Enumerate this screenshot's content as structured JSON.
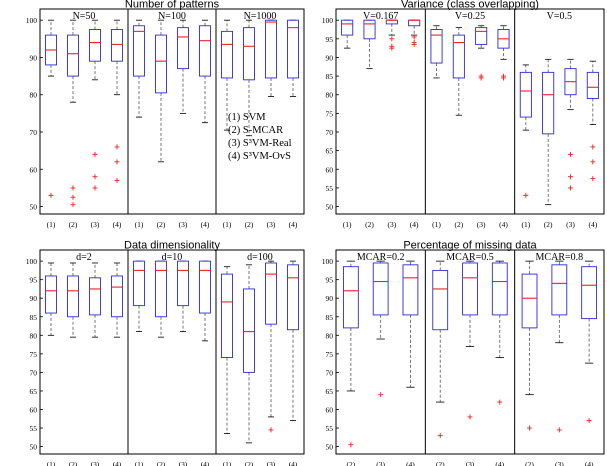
{
  "chart_data": [
    {
      "type": "box",
      "title": "Number of patterns",
      "ylim": [
        48,
        103
      ],
      "yticks": [
        50,
        60,
        70,
        80,
        90,
        100
      ],
      "categories": [
        "(1)",
        "(2)",
        "(3)",
        "(4)"
      ],
      "legend": [
        "(1) SVM",
        "(2) S-MCAR",
        "(3) S³VM-Real",
        "(4) S³VM-OvS"
      ],
      "groups": [
        {
          "label": "N=50",
          "boxes": [
            {
              "category": "(1)",
              "whisker_low": 85,
              "q1": 88,
              "median": 92,
              "q3": 96,
              "whisker_high": 100,
              "outliers": [
                53
              ]
            },
            {
              "category": "(2)",
              "whisker_low": 78,
              "q1": 85,
              "median": 91,
              "q3": 96,
              "whisker_high": 100,
              "outliers": [
                55,
                52.5,
                50.5
              ]
            },
            {
              "category": "(3)",
              "whisker_low": 84,
              "q1": 89,
              "median": 94,
              "q3": 97.5,
              "whisker_high": 100,
              "outliers": [
                64,
                58,
                55
              ]
            },
            {
              "category": "(4)",
              "whisker_low": 80,
              "q1": 89,
              "median": 93.5,
              "q3": 97.5,
              "whisker_high": 100,
              "outliers": [
                66,
                62,
                57
              ]
            }
          ]
        },
        {
          "label": "N=100",
          "boxes": [
            {
              "category": "(1)",
              "whisker_low": 74,
              "q1": 85,
              "median": 97,
              "q3": 98.5,
              "whisker_high": 100,
              "outliers": []
            },
            {
              "category": "(2)",
              "whisker_low": 62,
              "q1": 80.5,
              "median": 89,
              "q3": 96,
              "whisker_high": 100,
              "outliers": []
            },
            {
              "category": "(3)",
              "whisker_low": 75,
              "q1": 87,
              "median": 95.5,
              "q3": 98,
              "whisker_high": 100,
              "outliers": []
            },
            {
              "category": "(4)",
              "whisker_low": 72.5,
              "q1": 85,
              "median": 94.5,
              "q3": 98.5,
              "whisker_high": 100,
              "outliers": []
            }
          ]
        },
        {
          "label": "N=1000",
          "boxes": [
            {
              "category": "(1)",
              "whisker_low": 70.5,
              "q1": 84.5,
              "median": 93.5,
              "q3": 97,
              "whisker_high": 100,
              "outliers": []
            },
            {
              "category": "(2)",
              "whisker_low": 69,
              "q1": 84,
              "median": 93,
              "q3": 98,
              "whisker_high": 100,
              "outliers": []
            },
            {
              "category": "(3)",
              "whisker_low": 79.5,
              "q1": 84.5,
              "median": 99.5,
              "q3": 100,
              "whisker_high": 100,
              "outliers": []
            },
            {
              "category": "(4)",
              "whisker_low": 79.5,
              "q1": 84.5,
              "median": 98,
              "q3": 100,
              "whisker_high": 100,
              "outliers": []
            }
          ]
        }
      ]
    },
    {
      "type": "box",
      "title": "Variance (class overlapping)",
      "ylim": [
        48,
        103
      ],
      "yticks": [
        50,
        55,
        60,
        65,
        70,
        75,
        80,
        85,
        90,
        95,
        100
      ],
      "categories": [
        "(1)",
        "(2)",
        "(3)",
        "(4)"
      ],
      "groups": [
        {
          "label": "V=0.167",
          "boxes": [
            {
              "category": "(1)",
              "whisker_low": 92.5,
              "q1": 96,
              "median": 99,
              "q3": 100,
              "whisker_high": 100,
              "outliers": []
            },
            {
              "category": "(2)",
              "whisker_low": 87,
              "q1": 95,
              "median": 99,
              "q3": 100,
              "whisker_high": 100,
              "outliers": []
            },
            {
              "category": "(3)",
              "whisker_low": 96,
              "q1": 99,
              "median": 100,
              "q3": 100,
              "whisker_high": 100,
              "outliers": [
                95,
                93,
                92.5
              ]
            },
            {
              "category": "(4)",
              "whisker_low": 96,
              "q1": 98.5,
              "median": 100,
              "q3": 100,
              "whisker_high": 100,
              "outliers": [
                95.5,
                94,
                93.5
              ]
            }
          ]
        },
        {
          "label": "V=0.25",
          "boxes": [
            {
              "category": "(1)",
              "whisker_low": 84.5,
              "q1": 88.5,
              "median": 96,
              "q3": 97.5,
              "whisker_high": 98.5,
              "outliers": []
            },
            {
              "category": "(2)",
              "whisker_low": 74.5,
              "q1": 84.5,
              "median": 94,
              "q3": 96,
              "whisker_high": 98,
              "outliers": []
            },
            {
              "category": "(3)",
              "whisker_low": 92.5,
              "q1": 93.5,
              "median": 97,
              "q3": 98,
              "whisker_high": 98.5,
              "outliers": [
                85,
                84.5
              ]
            },
            {
              "category": "(4)",
              "whisker_low": 89.5,
              "q1": 92.5,
              "median": 95,
              "q3": 97.5,
              "whisker_high": 98.5,
              "outliers": [
                85,
                84.5
              ]
            }
          ]
        },
        {
          "label": "V=0.5",
          "boxes": [
            {
              "category": "(1)",
              "whisker_low": 70.5,
              "q1": 74,
              "median": 81,
              "q3": 86,
              "whisker_high": 88,
              "outliers": [
                53
              ]
            },
            {
              "category": "(2)",
              "whisker_low": 50.5,
              "q1": 69.5,
              "median": 80,
              "q3": 86,
              "whisker_high": 89.5,
              "outliers": []
            },
            {
              "category": "(3)",
              "whisker_low": 76,
              "q1": 80,
              "median": 83.5,
              "q3": 87,
              "whisker_high": 89.5,
              "outliers": [
                64,
                58,
                55
              ]
            },
            {
              "category": "(4)",
              "whisker_low": 72,
              "q1": 79,
              "median": 82,
              "q3": 86,
              "whisker_high": 89,
              "outliers": [
                66,
                62,
                57.5
              ]
            }
          ]
        }
      ]
    },
    {
      "type": "box",
      "title": "Data dimensionality",
      "ylim": [
        48,
        103
      ],
      "yticks": [
        50,
        55,
        60,
        65,
        70,
        75,
        80,
        85,
        90,
        95,
        100
      ],
      "categories": [
        "(1)",
        "(2)",
        "(3)",
        "(4)"
      ],
      "groups": [
        {
          "label": "d=2",
          "boxes": [
            {
              "category": "(1)",
              "whisker_low": 80,
              "q1": 86,
              "median": 92,
              "q3": 96,
              "whisker_high": 99.5,
              "outliers": []
            },
            {
              "category": "(2)",
              "whisker_low": 79.5,
              "q1": 85,
              "median": 92,
              "q3": 96,
              "whisker_high": 99.5,
              "outliers": []
            },
            {
              "category": "(3)",
              "whisker_low": 79.5,
              "q1": 85.5,
              "median": 92.5,
              "q3": 95.5,
              "whisker_high": 99.5,
              "outliers": []
            },
            {
              "category": "(4)",
              "whisker_low": 79.5,
              "q1": 85,
              "median": 93,
              "q3": 96,
              "whisker_high": 99.5,
              "outliers": []
            }
          ]
        },
        {
          "label": "d=10",
          "boxes": [
            {
              "category": "(1)",
              "whisker_low": 81,
              "q1": 88,
              "median": 97.5,
              "q3": 100,
              "whisker_high": 100,
              "outliers": []
            },
            {
              "category": "(2)",
              "whisker_low": 79.5,
              "q1": 85,
              "median": 97.5,
              "q3": 100,
              "whisker_high": 100,
              "outliers": []
            },
            {
              "category": "(3)",
              "whisker_low": 81,
              "q1": 88,
              "median": 97.5,
              "q3": 100,
              "whisker_high": 100,
              "outliers": []
            },
            {
              "category": "(4)",
              "whisker_low": 78.5,
              "q1": 86,
              "median": 97.5,
              "q3": 100,
              "whisker_high": 100,
              "outliers": []
            }
          ]
        },
        {
          "label": "d=100",
          "boxes": [
            {
              "category": "(1)",
              "whisker_low": 53.5,
              "q1": 74,
              "median": 89,
              "q3": 96.5,
              "whisker_high": 98.5,
              "outliers": []
            },
            {
              "category": "(2)",
              "whisker_low": 51,
              "q1": 70,
              "median": 81,
              "q3": 92.5,
              "whisker_high": 99,
              "outliers": []
            },
            {
              "category": "(3)",
              "whisker_low": 58,
              "q1": 83,
              "median": 96.5,
              "q3": 99.5,
              "whisker_high": 100,
              "outliers": [
                54.5
              ]
            },
            {
              "category": "(4)",
              "whisker_low": 57,
              "q1": 81.5,
              "median": 95.5,
              "q3": 99,
              "whisker_high": 100,
              "outliers": []
            }
          ]
        }
      ]
    },
    {
      "type": "box",
      "title": "Percentage of missing data",
      "ylim": [
        48,
        103
      ],
      "yticks": [
        50,
        55,
        60,
        65,
        70,
        75,
        80,
        85,
        90,
        95,
        100
      ],
      "categories": [
        "(2)",
        "(3)",
        "(4)"
      ],
      "groups": [
        {
          "label": "MCAR=0.2",
          "boxes": [
            {
              "category": "(2)",
              "whisker_low": 65,
              "q1": 82,
              "median": 92,
              "q3": 98.5,
              "whisker_high": 100,
              "outliers": [
                50.5
              ]
            },
            {
              "category": "(3)",
              "whisker_low": 79,
              "q1": 85.5,
              "median": 94.5,
              "q3": 99.5,
              "whisker_high": 100,
              "outliers": [
                64
              ]
            },
            {
              "category": "(4)",
              "whisker_low": 66,
              "q1": 85.5,
              "median": 95.5,
              "q3": 99,
              "whisker_high": 100,
              "outliers": []
            }
          ]
        },
        {
          "label": "MCAR=0.5",
          "boxes": [
            {
              "category": "(2)",
              "whisker_low": 62,
              "q1": 81.5,
              "median": 92.5,
              "q3": 97.5,
              "whisker_high": 100,
              "outliers": [
                53
              ]
            },
            {
              "category": "(3)",
              "whisker_low": 77,
              "q1": 85.5,
              "median": 95.5,
              "q3": 99.5,
              "whisker_high": 100,
              "outliers": [
                58
              ]
            },
            {
              "category": "(4)",
              "whisker_low": 74,
              "q1": 85.5,
              "median": 94.5,
              "q3": 99.5,
              "whisker_high": 100,
              "outliers": [
                62
              ]
            }
          ]
        },
        {
          "label": "MCAR=0.8",
          "boxes": [
            {
              "category": "(2)",
              "whisker_low": 64,
              "q1": 82,
              "median": 90,
              "q3": 96.5,
              "whisker_high": 100,
              "outliers": [
                55
              ]
            },
            {
              "category": "(3)",
              "whisker_low": 78,
              "q1": 85.5,
              "median": 94,
              "q3": 99,
              "whisker_high": 100,
              "outliers": [
                54.5
              ]
            },
            {
              "category": "(4)",
              "whisker_low": 72.5,
              "q1": 84.5,
              "median": 93.5,
              "q3": 98.5,
              "whisker_high": 100,
              "outliers": [
                57
              ]
            }
          ]
        }
      ]
    }
  ]
}
